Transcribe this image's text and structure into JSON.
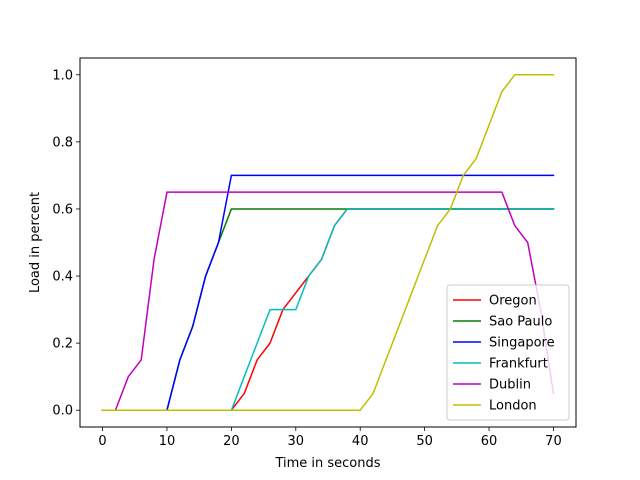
{
  "chart_data": {
    "type": "line",
    "title": "",
    "xlabel": "Time in seconds",
    "ylabel": "Load in percent",
    "xlim": [
      -3.5,
      73.5
    ],
    "ylim": [
      -0.05,
      1.05
    ],
    "xticks": [
      "0",
      "10",
      "20",
      "30",
      "40",
      "50",
      "60",
      "70"
    ],
    "yticks": [
      "0.0",
      "0.2",
      "0.4",
      "0.6",
      "0.8",
      "1.0"
    ],
    "grid": false,
    "legend_position": "lower-right",
    "series": [
      {
        "name": "Oregon",
        "color": "#ff0000",
        "x": [
          0,
          20,
          22,
          24,
          26,
          28,
          30,
          32,
          34,
          36,
          38,
          70
        ],
        "y": [
          0.0,
          0.0,
          0.05,
          0.15,
          0.2,
          0.3,
          0.35,
          0.4,
          0.45,
          0.55,
          0.6,
          0.6
        ]
      },
      {
        "name": "Sao Paulo",
        "color": "#008000",
        "x": [
          0,
          10,
          12,
          14,
          16,
          18,
          20,
          70
        ],
        "y": [
          0.0,
          0.0,
          0.15,
          0.25,
          0.4,
          0.5,
          0.6,
          0.6
        ]
      },
      {
        "name": "Singapore",
        "color": "#0000ff",
        "x": [
          0,
          10,
          12,
          14,
          16,
          18,
          20,
          70
        ],
        "y": [
          0.0,
          0.0,
          0.15,
          0.25,
          0.4,
          0.5,
          0.7,
          0.7
        ]
      },
      {
        "name": "Frankfurt",
        "color": "#00bfbf",
        "x": [
          0,
          20,
          22,
          24,
          26,
          28,
          30,
          32,
          34,
          36,
          38,
          70
        ],
        "y": [
          0.0,
          0.0,
          0.1,
          0.2,
          0.3,
          0.3,
          0.3,
          0.4,
          0.45,
          0.55,
          0.6,
          0.6
        ]
      },
      {
        "name": "Dublin",
        "color": "#bf00bf",
        "x": [
          0,
          2,
          4,
          6,
          8,
          10,
          62,
          64,
          66,
          68,
          70
        ],
        "y": [
          0.0,
          0.0,
          0.1,
          0.15,
          0.45,
          0.65,
          0.65,
          0.55,
          0.5,
          0.3,
          0.05
        ]
      },
      {
        "name": "London",
        "color": "#bfbf00",
        "x": [
          0,
          40,
          42,
          44,
          46,
          48,
          50,
          52,
          54,
          56,
          58,
          60,
          62,
          64,
          66,
          68,
          70
        ],
        "y": [
          0.0,
          0.0,
          0.05,
          0.15,
          0.25,
          0.35,
          0.45,
          0.55,
          0.6,
          0.7,
          0.75,
          0.85,
          0.95,
          1.0,
          1.0,
          1.0,
          1.0
        ]
      }
    ]
  }
}
